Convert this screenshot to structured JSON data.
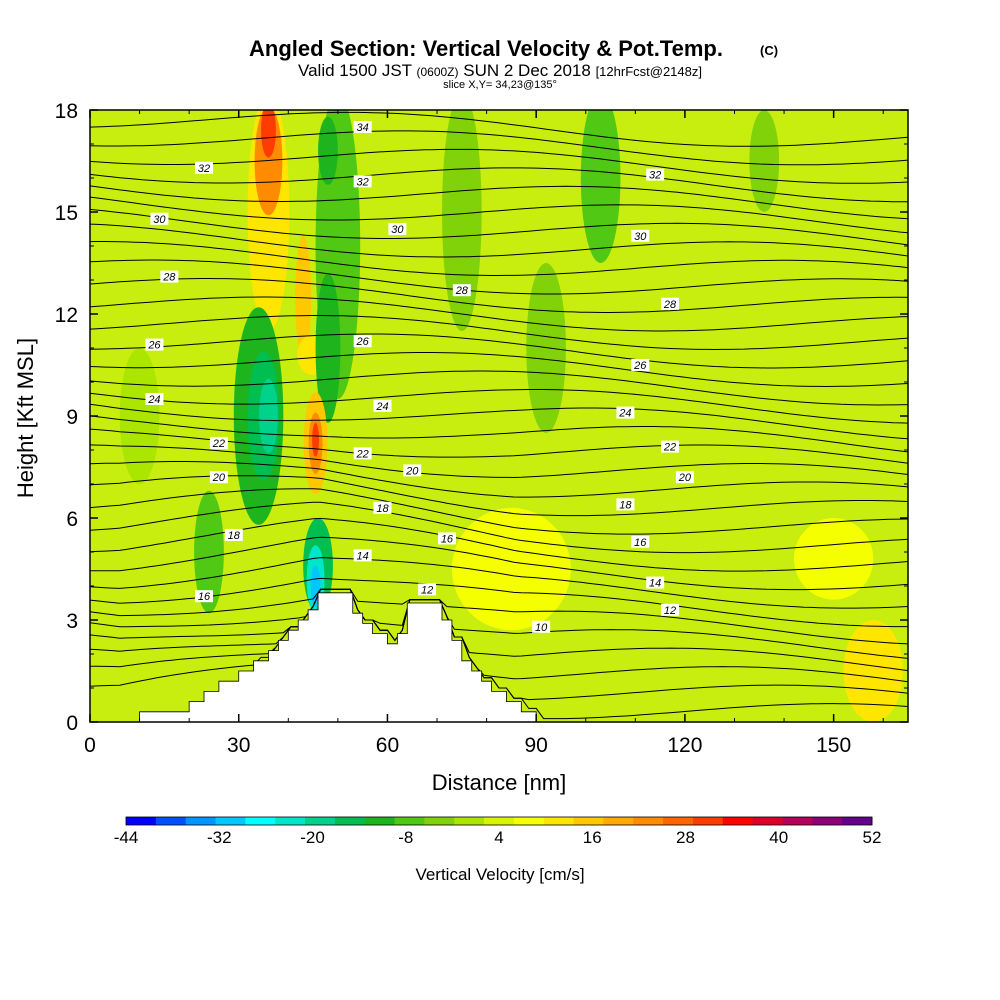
{
  "title": {
    "main": "Angled Section: Vertical Velocity & Pot.Temp.",
    "copyright": "(C)",
    "valid_prefix": "Valid 1500 JST",
    "valid_z": "(0600Z)",
    "valid_date": "SUN 2 Dec 2018",
    "forecast": "[12hrFcst@2148z]",
    "slice": "slice X,Y= 34,23@135°"
  },
  "chart_data": {
    "type": "heatmap",
    "xlabel": "Distance [nm]",
    "ylabel": "Height [Kft MSL]",
    "xlim": [
      0,
      165
    ],
    "ylim": [
      0,
      18
    ],
    "x_ticks": [
      "0",
      "30",
      "60",
      "90",
      "120",
      "150"
    ],
    "x_tick_values": [
      0,
      30,
      60,
      90,
      120,
      150
    ],
    "y_ticks": [
      "0",
      "3",
      "6",
      "9",
      "12",
      "15",
      "18"
    ],
    "y_tick_values": [
      0,
      3,
      6,
      9,
      12,
      15,
      18
    ],
    "colorbar": {
      "title": "Vertical Velocity [cm/s]",
      "labels": [
        "-44",
        "-32",
        "-20",
        "-8",
        "4",
        "16",
        "28",
        "40",
        "52"
      ],
      "colors": [
        "#0000ff",
        "#0050ff",
        "#0096ff",
        "#00c8ff",
        "#00ffff",
        "#00e6c8",
        "#00d28c",
        "#00be50",
        "#1eb41e",
        "#50c814",
        "#82d20a",
        "#aae600",
        "#d7f500",
        "#f5ff00",
        "#ffe600",
        "#ffc800",
        "#ffaa00",
        "#ff8c00",
        "#ff6400",
        "#ff3c00",
        "#ff0000",
        "#dc0028",
        "#b4005a",
        "#8c0078",
        "#64008c"
      ]
    },
    "terrain_profile": [
      {
        "x": 0,
        "h": 0.0
      },
      {
        "x": 8,
        "h": 0.0
      },
      {
        "x": 10,
        "h": 0.3
      },
      {
        "x": 18,
        "h": 0.3
      },
      {
        "x": 20,
        "h": 0.6
      },
      {
        "x": 23,
        "h": 0.9
      },
      {
        "x": 26,
        "h": 1.2
      },
      {
        "x": 30,
        "h": 1.5
      },
      {
        "x": 33,
        "h": 1.8
      },
      {
        "x": 36,
        "h": 2.1
      },
      {
        "x": 38,
        "h": 2.4
      },
      {
        "x": 40,
        "h": 2.7
      },
      {
        "x": 42,
        "h": 3.0
      },
      {
        "x": 44,
        "h": 3.3
      },
      {
        "x": 46,
        "h": 3.8
      },
      {
        "x": 52,
        "h": 3.8
      },
      {
        "x": 53,
        "h": 3.2
      },
      {
        "x": 55,
        "h": 2.9
      },
      {
        "x": 57,
        "h": 2.6
      },
      {
        "x": 60,
        "h": 2.3
      },
      {
        "x": 62,
        "h": 2.6
      },
      {
        "x": 64,
        "h": 3.5
      },
      {
        "x": 69,
        "h": 3.5
      },
      {
        "x": 71,
        "h": 3.0
      },
      {
        "x": 73,
        "h": 2.4
      },
      {
        "x": 75,
        "h": 1.8
      },
      {
        "x": 77,
        "h": 1.5
      },
      {
        "x": 79,
        "h": 1.2
      },
      {
        "x": 81,
        "h": 0.9
      },
      {
        "x": 84,
        "h": 0.6
      },
      {
        "x": 87,
        "h": 0.3
      },
      {
        "x": 90,
        "h": 0.0
      },
      {
        "x": 165,
        "h": 0.0
      }
    ],
    "potential_temperature_labels": [
      {
        "value": "34",
        "x": 55,
        "h": 17.5
      },
      {
        "value": "32",
        "x": 23,
        "h": 16.3
      },
      {
        "value": "32",
        "x": 55,
        "h": 15.9
      },
      {
        "value": "32",
        "x": 114,
        "h": 16.1
      },
      {
        "value": "30",
        "x": 14,
        "h": 14.8
      },
      {
        "value": "30",
        "x": 62,
        "h": 14.5
      },
      {
        "value": "30",
        "x": 111,
        "h": 14.3
      },
      {
        "value": "28",
        "x": 16,
        "h": 13.1
      },
      {
        "value": "28",
        "x": 75,
        "h": 12.7
      },
      {
        "value": "28",
        "x": 117,
        "h": 12.3
      },
      {
        "value": "26",
        "x": 13,
        "h": 11.1
      },
      {
        "value": "26",
        "x": 55,
        "h": 11.2
      },
      {
        "value": "26",
        "x": 111,
        "h": 10.5
      },
      {
        "value": "24",
        "x": 13,
        "h": 9.5
      },
      {
        "value": "24",
        "x": 59,
        "h": 9.3
      },
      {
        "value": "24",
        "x": 108,
        "h": 9.1
      },
      {
        "value": "22",
        "x": 26,
        "h": 8.2
      },
      {
        "value": "22",
        "x": 55,
        "h": 7.9
      },
      {
        "value": "22",
        "x": 117,
        "h": 8.1
      },
      {
        "value": "20",
        "x": 26,
        "h": 7.2
      },
      {
        "value": "20",
        "x": 65,
        "h": 7.4
      },
      {
        "value": "20",
        "x": 120,
        "h": 7.2
      },
      {
        "value": "18",
        "x": 29,
        "h": 5.5
      },
      {
        "value": "18",
        "x": 59,
        "h": 6.3
      },
      {
        "value": "18",
        "x": 108,
        "h": 6.4
      },
      {
        "value": "16",
        "x": 23,
        "h": 3.7
      },
      {
        "value": "16",
        "x": 72,
        "h": 5.4
      },
      {
        "value": "16",
        "x": 111,
        "h": 5.3
      },
      {
        "value": "14",
        "x": 55,
        "h": 4.9
      },
      {
        "value": "14",
        "x": 114,
        "h": 4.1
      },
      {
        "value": "12",
        "x": 68,
        "h": 3.9
      },
      {
        "value": "12",
        "x": 117,
        "h": 3.3
      },
      {
        "value": "10",
        "x": 91,
        "h": 2.8
      }
    ]
  }
}
